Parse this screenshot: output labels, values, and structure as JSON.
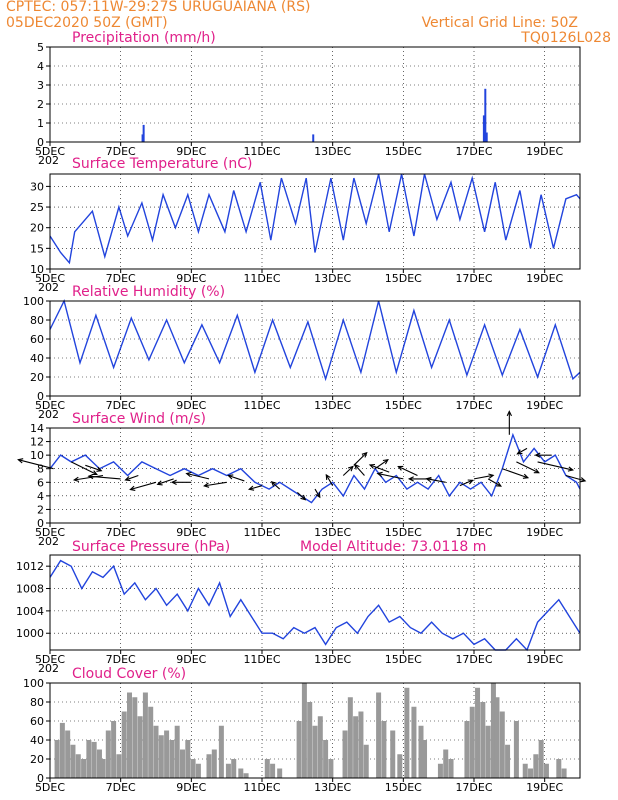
{
  "header": {
    "line1": "CPTEC:   057:11W-29:27S   URUGUAIANA (RS)",
    "line2": "05DEC2020 50Z (GMT)",
    "grid_note": "Vertical Grid Line: 50Z",
    "model_id": "TQ0126L028"
  },
  "colors": {
    "header": "#ee8833",
    "title": "#e0208a",
    "line": "#2244dd",
    "bar": "#999999"
  },
  "x_axis": {
    "label_days": [
      5,
      7,
      9,
      11,
      13,
      15,
      17,
      19
    ],
    "labels": [
      "5DEC",
      "7DEC",
      "9DEC",
      "11DEC",
      "13DEC",
      "15DEC",
      "17DEC",
      "19DEC"
    ],
    "x_range_days": [
      5,
      20
    ],
    "year_fragment": "202"
  },
  "chart_data": [
    {
      "type": "bar",
      "title": "Precipitation (mm/h)",
      "ylim": [
        0,
        5
      ],
      "yticks": [
        0,
        1,
        2,
        3,
        4,
        5
      ],
      "x_days": [
        7.62,
        7.65,
        12.45,
        17.28,
        17.32,
        17.36
      ],
      "values": [
        0.4,
        0.9,
        0.4,
        1.4,
        2.8,
        0.5
      ],
      "grid": true
    },
    {
      "type": "line",
      "title": "Surface Temperature (nC)",
      "ylim": [
        10,
        33
      ],
      "yticks": [
        10,
        15,
        20,
        25,
        30
      ],
      "x_days": [
        5.0,
        5.3,
        5.55,
        5.7,
        6.2,
        6.55,
        6.95,
        7.2,
        7.6,
        7.9,
        8.2,
        8.55,
        8.9,
        9.2,
        9.5,
        9.95,
        10.2,
        10.55,
        10.95,
        11.25,
        11.55,
        11.95,
        12.25,
        12.5,
        12.95,
        13.3,
        13.6,
        13.95,
        14.3,
        14.6,
        14.95,
        15.3,
        15.6,
        15.95,
        16.35,
        16.6,
        16.95,
        17.3,
        17.6,
        17.9,
        18.3,
        18.6,
        18.9,
        19.25,
        19.6,
        19.9,
        20.0
      ],
      "values": [
        18,
        14,
        11.5,
        19,
        24,
        13,
        25,
        18,
        26,
        17,
        28,
        20,
        28,
        19,
        28,
        19,
        29,
        19,
        31,
        17,
        32,
        21,
        32,
        14,
        32,
        17,
        32,
        21,
        33,
        19,
        33,
        18,
        33,
        22,
        31,
        22,
        32,
        19,
        31,
        17,
        29,
        15,
        28,
        15,
        27,
        28,
        27
      ],
      "grid": true
    },
    {
      "type": "line",
      "title": "Relative Humidity (%)",
      "ylim": [
        0,
        100
      ],
      "yticks": [
        0,
        20,
        40,
        60,
        80,
        100
      ],
      "x_days": [
        5.0,
        5.4,
        5.85,
        6.3,
        6.8,
        7.3,
        7.8,
        8.3,
        8.8,
        9.3,
        9.8,
        10.3,
        10.8,
        11.3,
        11.8,
        12.3,
        12.8,
        13.3,
        13.8,
        14.3,
        14.8,
        15.3,
        15.8,
        16.3,
        16.8,
        17.3,
        17.8,
        18.3,
        18.8,
        19.3,
        19.8,
        20.0
      ],
      "values": [
        70,
        100,
        35,
        85,
        30,
        82,
        38,
        80,
        35,
        75,
        35,
        85,
        25,
        80,
        30,
        78,
        18,
        80,
        25,
        100,
        25,
        90,
        30,
        80,
        22,
        75,
        22,
        70,
        20,
        75,
        18,
        25
      ],
      "grid": true
    },
    {
      "type": "line",
      "title": "Surface Wind (m/s)",
      "ylim": [
        0,
        14
      ],
      "yticks": [
        0,
        2,
        4,
        6,
        8,
        10,
        12,
        14
      ],
      "x_days": [
        5.0,
        5.3,
        5.6,
        6.0,
        6.4,
        6.8,
        7.2,
        7.6,
        8.0,
        8.4,
        8.8,
        9.2,
        9.6,
        10.0,
        10.4,
        10.8,
        11.2,
        11.5,
        11.8,
        12.1,
        12.4,
        12.7,
        13.0,
        13.3,
        13.6,
        13.9,
        14.2,
        14.5,
        14.8,
        15.1,
        15.4,
        15.7,
        16.0,
        16.3,
        16.6,
        16.9,
        17.2,
        17.5,
        17.8,
        18.1,
        18.4,
        18.7,
        19.0,
        19.3,
        19.6,
        19.9,
        20.0
      ],
      "values": [
        8,
        10,
        9,
        10,
        8,
        9,
        7,
        9,
        8,
        7,
        8,
        7,
        8,
        7,
        8,
        6,
        5,
        6,
        5,
        4,
        3,
        5,
        6,
        4,
        7,
        5,
        8,
        6,
        7,
        5,
        6,
        5,
        7,
        4,
        6,
        5,
        6,
        4,
        8,
        13,
        9,
        11,
        9,
        10,
        7,
        6,
        5
      ],
      "grid": true
    },
    {
      "type": "line",
      "title": "Surface Pressure (hPa)",
      "annotation": "Model Altitude: 73.0118  m",
      "ylim": [
        997,
        1014
      ],
      "yticks": [
        1000,
        1004,
        1008,
        1012
      ],
      "x_days": [
        5.0,
        5.3,
        5.6,
        5.9,
        6.2,
        6.5,
        6.8,
        7.1,
        7.4,
        7.7,
        8.0,
        8.3,
        8.6,
        8.9,
        9.2,
        9.5,
        9.8,
        10.1,
        10.4,
        10.7,
        11.0,
        11.3,
        11.6,
        11.9,
        12.2,
        12.5,
        12.8,
        13.1,
        13.4,
        13.7,
        14.0,
        14.3,
        14.6,
        14.9,
        15.2,
        15.5,
        15.8,
        16.1,
        16.4,
        16.7,
        17.0,
        17.3,
        17.6,
        17.9,
        18.2,
        18.5,
        18.8,
        19.1,
        19.4,
        19.7,
        20.0
      ],
      "values": [
        1010,
        1013,
        1012,
        1008,
        1011,
        1010,
        1012,
        1007,
        1009,
        1006,
        1008,
        1005,
        1007,
        1004,
        1008,
        1005,
        1009,
        1003,
        1006,
        1003,
        1000,
        1000,
        999,
        1001,
        1000,
        1001,
        998,
        1001,
        1002,
        1000,
        1003,
        1005,
        1002,
        1003,
        1001,
        1000,
        1002,
        1000,
        999,
        1000,
        998,
        999,
        997,
        997,
        999,
        997,
        1002,
        1004,
        1006,
        1003,
        1000
      ],
      "grid": true
    },
    {
      "type": "bar",
      "title": "Cloud Cover (%)",
      "ylim": [
        0,
        100
      ],
      "yticks": [
        0,
        20,
        40,
        60,
        80,
        100
      ],
      "x_days": [
        5.2,
        5.35,
        5.5,
        5.65,
        5.8,
        5.95,
        6.1,
        6.25,
        6.4,
        6.5,
        6.65,
        6.8,
        6.95,
        7.1,
        7.25,
        7.4,
        7.55,
        7.7,
        7.85,
        8.0,
        8.15,
        8.3,
        8.45,
        8.6,
        8.75,
        8.9,
        9.05,
        9.2,
        9.5,
        9.65,
        9.85,
        10.05,
        10.2,
        10.4,
        10.55,
        11.15,
        11.3,
        11.5,
        12.05,
        12.2,
        12.35,
        12.5,
        12.65,
        12.8,
        12.95,
        13.35,
        13.5,
        13.65,
        13.8,
        13.95,
        14.3,
        14.45,
        14.7,
        14.9,
        15.1,
        15.3,
        15.5,
        15.6,
        16.05,
        16.2,
        16.35,
        16.8,
        16.95,
        17.1,
        17.25,
        17.4,
        17.55,
        17.65,
        17.8,
        17.95,
        18.2,
        18.45,
        18.6,
        18.75,
        18.9,
        19.05,
        19.4,
        19.55
      ],
      "values": [
        40,
        58,
        50,
        35,
        25,
        20,
        40,
        38,
        30,
        20,
        50,
        60,
        25,
        70,
        90,
        85,
        65,
        90,
        75,
        55,
        45,
        50,
        40,
        55,
        30,
        40,
        20,
        15,
        25,
        30,
        55,
        15,
        20,
        10,
        5,
        20,
        15,
        10,
        60,
        100,
        80,
        55,
        65,
        40,
        20,
        50,
        85,
        65,
        70,
        35,
        90,
        60,
        50,
        25,
        95,
        75,
        55,
        40,
        15,
        30,
        20,
        60,
        75,
        95,
        80,
        55,
        100,
        85,
        70,
        35,
        60,
        15,
        10,
        25,
        40,
        15,
        20,
        10
      ],
      "grid": true
    }
  ],
  "wind_vectors": {
    "x_days": [
      5.1,
      5.6,
      6.0,
      6.5,
      7.0,
      7.5,
      8.0,
      8.5,
      9.0,
      9.5,
      10.0,
      10.5,
      11.0,
      11.5,
      12.0,
      12.5,
      13.0,
      13.3,
      13.6,
      13.9,
      14.2,
      14.6,
      15.0,
      15.4,
      15.8,
      16.2,
      16.6,
      17.0,
      17.4,
      17.8,
      18.0,
      18.2,
      18.5,
      18.8,
      19.2,
      19.6
    ],
    "magnitude": [
      8,
      9,
      8.5,
      7,
      6.5,
      7,
      6,
      6.5,
      6,
      6.5,
      6,
      6.2,
      5.5,
      5,
      4.5,
      5,
      5.5,
      7,
      8.5,
      7,
      8,
      7.5,
      6.5,
      7,
      6.5,
      6,
      5.5,
      6.5,
      6.5,
      8,
      13,
      9,
      11,
      9,
      10,
      7
    ],
    "u": [
      -2.2,
      1.6,
      1.0,
      -1.8,
      -2.0,
      -0.8,
      -1.6,
      -1.0,
      -1.2,
      -1.4,
      -1.4,
      -1.0,
      -0.8,
      -0.5,
      0.5,
      0.3,
      -0.4,
      0.6,
      0.8,
      -0.6,
      0.8,
      -1.2,
      -1.6,
      -1.2,
      -1.4,
      -1.2,
      0.8,
      1.2,
      0.8,
      1.6,
      0.0,
      1.4,
      -0.6,
      2.2,
      -1.0,
      1.2
    ],
    "v": [
      1.0,
      -1.4,
      -0.6,
      -0.5,
      0.3,
      -0.5,
      -0.8,
      -0.6,
      0.0,
      0.6,
      -0.4,
      0.6,
      -0.4,
      0.8,
      -0.8,
      -0.9,
      1.2,
      1.0,
      1.4,
      1.2,
      1.0,
      0.8,
      0.6,
      1.0,
      0.0,
      0.4,
      0.6,
      0.4,
      -0.8,
      -1.0,
      2.6,
      -1.2,
      -0.6,
      -0.9,
      0.0,
      -0.6
    ]
  }
}
